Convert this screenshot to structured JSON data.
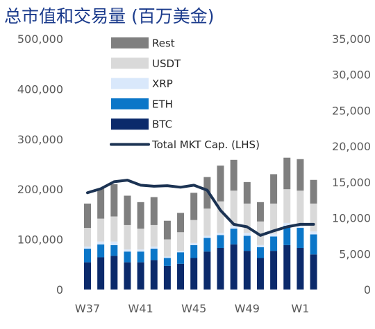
{
  "chart_data": {
    "type": "bar",
    "title": "总市值和交易量 (百万美金)",
    "stacked": true,
    "x": [
      "W37",
      "W38",
      "W39",
      "W40",
      "W41",
      "W42",
      "W43",
      "W44",
      "W45",
      "W46",
      "W47",
      "W48",
      "W49",
      "W50",
      "W51",
      "W52",
      "W1",
      "W2"
    ],
    "x_tick_labels": [
      "W37",
      "W41",
      "W45",
      "W49",
      "W1"
    ],
    "secondary_axis": {
      "ylim": [
        0,
        35000
      ],
      "ticks": [
        "0",
        "5,000",
        "10,000",
        "15,000",
        "20,000",
        "25,000",
        "30,000",
        "35,000"
      ]
    },
    "primary_axis": {
      "ylim": [
        0,
        500000
      ],
      "ticks": [
        "0",
        "100,000",
        "200,000",
        "300,000",
        "400,000",
        "500,000"
      ]
    },
    "series": [
      {
        "name": "BTC",
        "kind": "bar",
        "axis": "right",
        "color": "#0b2a6b",
        "values": [
          3800,
          4500,
          4700,
          3800,
          3800,
          4100,
          3300,
          3600,
          4400,
          5300,
          5800,
          6300,
          5400,
          4400,
          5400,
          6200,
          5800,
          4900
        ]
      },
      {
        "name": "ETH",
        "kind": "bar",
        "axis": "right",
        "color": "#0b76c8",
        "values": [
          1900,
          1800,
          1500,
          1500,
          1500,
          1600,
          1100,
          1600,
          1800,
          1900,
          1800,
          2200,
          2100,
          1500,
          2000,
          2700,
          2800,
          2800
        ]
      },
      {
        "name": "XRP",
        "kind": "bar",
        "axis": "right",
        "color": "#d9e8fb",
        "values": [
          300,
          400,
          500,
          300,
          300,
          300,
          200,
          200,
          300,
          300,
          300,
          400,
          400,
          300,
          400,
          400,
          300,
          400
        ]
      },
      {
        "name": "USDT",
        "kind": "bar",
        "axis": "right",
        "color": "#d9d9d9",
        "values": [
          2600,
          3200,
          3500,
          3400,
          2900,
          3000,
          2400,
          2600,
          3200,
          3800,
          4400,
          4900,
          4100,
          3300,
          4200,
          4700,
          4900,
          3900
        ]
      },
      {
        "name": "Rest",
        "kind": "bar",
        "axis": "right",
        "color": "#7f7f7f",
        "values": [
          3400,
          4200,
          4500,
          4100,
          3700,
          3900,
          2600,
          2700,
          3800,
          4400,
          5000,
          4300,
          3000,
          2700,
          4100,
          4400,
          4400,
          3300
        ]
      },
      {
        "name": "Total MKT Cap. (LHS)",
        "kind": "line",
        "axis": "left",
        "color": "#1c3353",
        "values": [
          193000,
          201000,
          215000,
          218000,
          208000,
          206000,
          207000,
          204000,
          208000,
          198000,
          158000,
          130000,
          125000,
          108000,
          117000,
          125000,
          130000,
          130000
        ]
      }
    ],
    "legend": {
      "position": "top-center",
      "entries": [
        "Rest",
        "USDT",
        "XRP",
        "ETH",
        "BTC",
        "Total MKT Cap. (LHS)"
      ]
    },
    "grid": false
  }
}
